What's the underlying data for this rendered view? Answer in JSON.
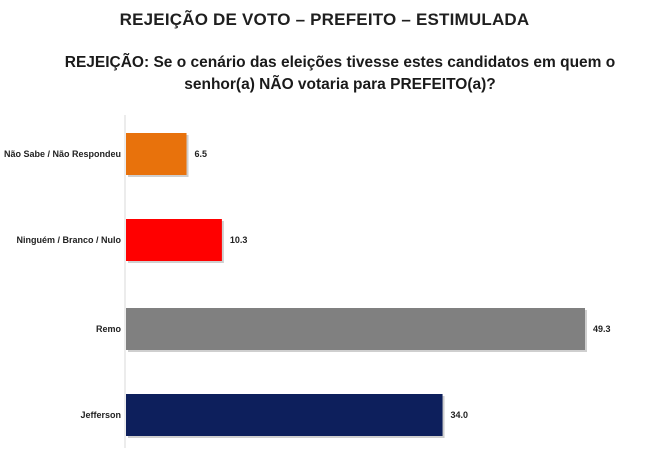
{
  "chart_data": {
    "type": "bar",
    "orientation": "horizontal",
    "title": "REJEIÇÃO DE VOTO – PREFEITO – ESTIMULADA",
    "subtitle": "REJEIÇÃO: Se o cenário das eleições tivesse estes candidatos em quem o senhor(a) NÃO votaria para PREFEITO(a)?",
    "categories": [
      "Não Sabe / Não Respondeu",
      "Ninguém / Branco / Nulo",
      "Remo",
      "Jefferson"
    ],
    "values": [
      6.5,
      10.3,
      49.3,
      34.0
    ],
    "value_labels": [
      "6.5",
      "10.3",
      "49.3",
      "34.0"
    ],
    "colors": [
      "#e8720c",
      "#ff0000",
      "#808080",
      "#0d1f5c"
    ],
    "xlim": [
      0,
      49.3
    ],
    "grid": false,
    "legend": "none"
  }
}
